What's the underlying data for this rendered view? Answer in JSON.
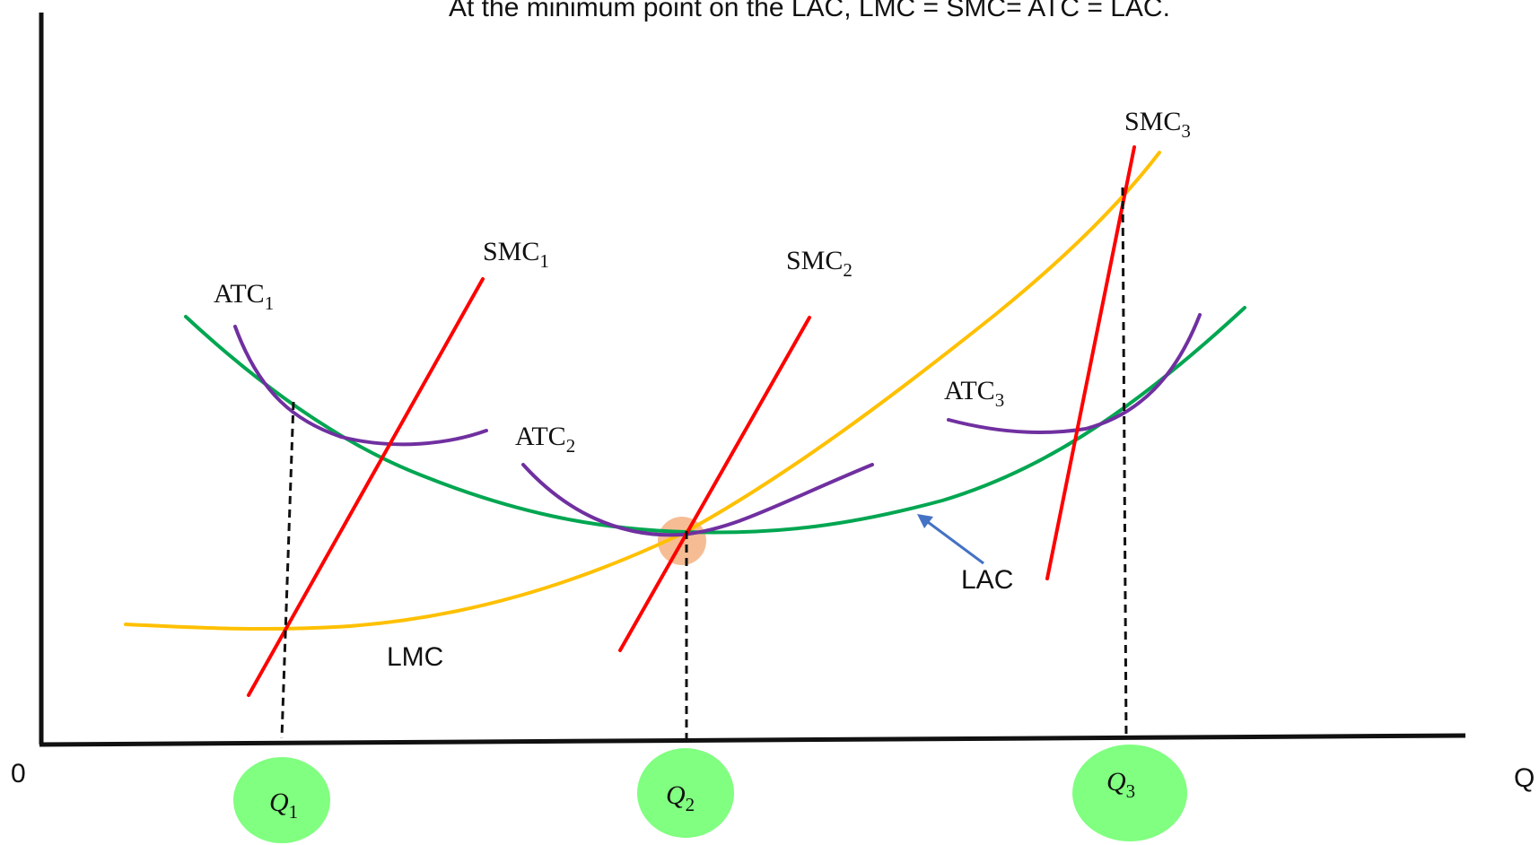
{
  "caption": "At the minimum point on the LAC, LMC = SMC= ATC = LAC.",
  "axes": {
    "origin": "0",
    "x_label": "Q"
  },
  "labels": {
    "atc1": {
      "main": "ATC",
      "sub": "1"
    },
    "atc2": {
      "main": "ATC",
      "sub": "2"
    },
    "atc3": {
      "main": "ATC",
      "sub": "3"
    },
    "smc1": {
      "main": "SMC",
      "sub": "1"
    },
    "smc2": {
      "main": "SMC",
      "sub": "2"
    },
    "smc3": {
      "main": "SMC",
      "sub": "3"
    },
    "lac": "LAC",
    "lmc": "LMC"
  },
  "quantities": {
    "q1": {
      "main": "Q",
      "sub": "1"
    },
    "q2": {
      "main": "Q",
      "sub": "2"
    },
    "q3": {
      "main": "Q",
      "sub": "3"
    }
  },
  "colors": {
    "lac": "#00a651",
    "lmc": "#ffc000",
    "smc": "#ff0000",
    "atc": "#7030a0",
    "quantity_marker": "#80ff80",
    "highlight": "#f4b183",
    "arrow": "#4472c4"
  }
}
